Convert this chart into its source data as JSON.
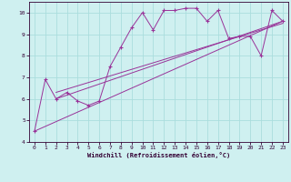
{
  "xlabel": "Windchill (Refroidissement éolien,°C)",
  "bg_color": "#cff0f0",
  "grid_color": "#aadddd",
  "line_color": "#993399",
  "spine_color": "#330033",
  "xlim": [
    -0.5,
    23.5
  ],
  "ylim": [
    4,
    10.5
  ],
  "yticks": [
    4,
    5,
    6,
    7,
    8,
    9,
    10
  ],
  "xticks": [
    0,
    1,
    2,
    3,
    4,
    5,
    6,
    7,
    8,
    9,
    10,
    11,
    12,
    13,
    14,
    15,
    16,
    17,
    18,
    19,
    20,
    21,
    22,
    23
  ],
  "series": [
    [
      0,
      4.5
    ],
    [
      1,
      6.9
    ],
    [
      2,
      6.0
    ],
    [
      3,
      6.3
    ],
    [
      4,
      5.9
    ],
    [
      5,
      5.7
    ],
    [
      6,
      5.9
    ],
    [
      7,
      7.5
    ],
    [
      8,
      8.4
    ],
    [
      9,
      9.3
    ],
    [
      10,
      10.0
    ],
    [
      11,
      9.2
    ],
    [
      12,
      10.1
    ],
    [
      13,
      10.1
    ],
    [
      14,
      10.2
    ],
    [
      15,
      10.2
    ],
    [
      16,
      9.6
    ],
    [
      17,
      10.1
    ],
    [
      18,
      8.8
    ],
    [
      19,
      8.9
    ],
    [
      20,
      8.9
    ],
    [
      21,
      8.0
    ],
    [
      22,
      10.1
    ],
    [
      23,
      9.6
    ]
  ],
  "linear1": [
    [
      0,
      4.5
    ],
    [
      23,
      9.6
    ]
  ],
  "linear2": [
    [
      2,
      6.0
    ],
    [
      23,
      9.6
    ]
  ],
  "linear3": [
    [
      2,
      6.3
    ],
    [
      23,
      9.5
    ]
  ]
}
